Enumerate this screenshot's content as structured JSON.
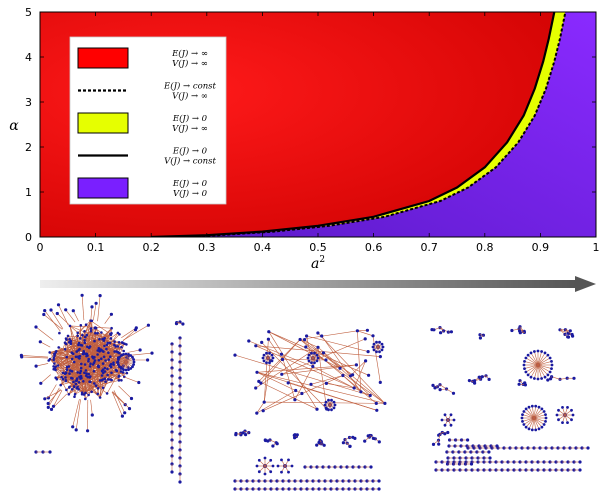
{
  "chart_data": {
    "type": "area",
    "xlabel": "a²",
    "ylabel": "α",
    "xlim": [
      0,
      1
    ],
    "ylim": [
      0,
      5
    ],
    "x_ticks": [
      "0",
      "0.1",
      "0.2",
      "0.3",
      "0.4",
      "0.5",
      "0.6",
      "0.7",
      "0.8",
      "0.9",
      "1"
    ],
    "y_ticks": [
      "0",
      "1",
      "2",
      "3",
      "4",
      "5"
    ],
    "grid": false,
    "legend_position": "top-left",
    "colors": {
      "red_region": "#ff0000",
      "yellow_region": "#e6ff00",
      "purple_region": "#7a1fff",
      "boundary_line": "#000000"
    },
    "series": [
      {
        "name": "E(J) → 0 / V(J) → const",
        "style": "solid",
        "x": [
          0.2,
          0.3,
          0.4,
          0.5,
          0.6,
          0.7,
          0.75,
          0.8,
          0.84,
          0.87,
          0.89,
          0.905,
          0.915,
          0.925
        ],
        "y": [
          0.0,
          0.04,
          0.12,
          0.25,
          0.45,
          0.8,
          1.1,
          1.55,
          2.1,
          2.7,
          3.3,
          3.9,
          4.4,
          5.0
        ]
      },
      {
        "name": "E(J) → const / V(J) → ∞",
        "style": "dashed",
        "x": [
          0.22,
          0.32,
          0.42,
          0.52,
          0.62,
          0.72,
          0.77,
          0.82,
          0.86,
          0.89,
          0.91,
          0.925,
          0.935,
          0.945
        ],
        "y": [
          0.0,
          0.04,
          0.12,
          0.25,
          0.45,
          0.8,
          1.1,
          1.55,
          2.1,
          2.7,
          3.3,
          3.9,
          4.4,
          5.0
        ]
      }
    ],
    "legend": [
      {
        "kind": "patch",
        "color": "#ff0000",
        "line1": "E(J) → ∞",
        "line2": "V(J) → ∞"
      },
      {
        "kind": "dashed",
        "color": "#000000",
        "line1": "E(J) → const",
        "line2": "V(J) → ∞"
      },
      {
        "kind": "patch",
        "color": "#e6ff00",
        "line1": "E(J) → 0",
        "line2": "V(J) → ∞"
      },
      {
        "kind": "solid",
        "color": "#000000",
        "line1": "E(J) → 0",
        "line2": "V(J) → const"
      },
      {
        "kind": "patch",
        "color": "#7a1fff",
        "line1": "E(J) → 0",
        "line2": "V(J) → 0"
      }
    ]
  },
  "arrow": {
    "direction": "increasing a²",
    "color_start": "#e8e8e8",
    "color_end": "#555555"
  },
  "network_panels": [
    {
      "position": "left",
      "description_colors": {
        "node": "#1a1aa0",
        "edge": "#c06040"
      }
    },
    {
      "position": "center",
      "description_colors": {
        "node": "#1a1aa0",
        "edge": "#c06040"
      }
    },
    {
      "position": "right",
      "description_colors": {
        "node": "#1a1aa0",
        "edge": "#c06040"
      }
    }
  ]
}
